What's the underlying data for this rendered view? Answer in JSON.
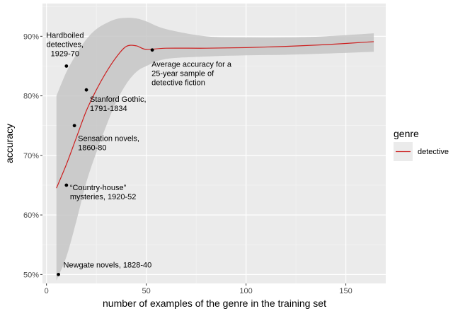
{
  "chart_data": {
    "type": "scatter",
    "xlabel": "number of examples of the genre in the training set",
    "ylabel": "accuracy",
    "xlim": [
      -2,
      170
    ],
    "ylim": [
      0.485,
      0.955
    ],
    "x_ticks": [
      0,
      50,
      100,
      150
    ],
    "x_tick_labels": [
      "0",
      "50",
      "100",
      "150"
    ],
    "y_ticks": [
      0.5,
      0.6,
      0.7,
      0.8,
      0.9
    ],
    "y_tick_labels": [
      "50%",
      "60%",
      "70%",
      "80%",
      "90%"
    ],
    "grid": true,
    "points": [
      {
        "x": 6,
        "y": 0.5,
        "label": "Newgate novels, 1828-40"
      },
      {
        "x": 10,
        "y": 0.65,
        "label": "“Country-house”\nmysteries, 1920-52"
      },
      {
        "x": 14,
        "y": 0.75,
        "label": "Sensation novels,\n1860-80"
      },
      {
        "x": 20,
        "y": 0.81,
        "label": "Stanford Gothic,\n1791-1834"
      },
      {
        "x": 10,
        "y": 0.85,
        "label": "Hardboiled\ndetectives,\n1929-70"
      },
      {
        "x": 53,
        "y": 0.877,
        "label": "Average accuracy for a\n25-year sample of\ndetective fiction"
      }
    ],
    "smooth_line": {
      "name": "detective",
      "x": [
        5,
        10,
        15,
        20,
        25,
        30,
        35,
        40,
        45,
        50,
        60,
        80,
        100,
        120,
        140,
        164
      ],
      "y": [
        0.645,
        0.685,
        0.73,
        0.775,
        0.81,
        0.84,
        0.865,
        0.883,
        0.884,
        0.878,
        0.88,
        0.88,
        0.881,
        0.883,
        0.886,
        0.891
      ]
    },
    "confidence_band": {
      "x": [
        5,
        10,
        15,
        20,
        25,
        30,
        35,
        40,
        45,
        50,
        60,
        80,
        100,
        120,
        140,
        164
      ],
      "upper": [
        0.8,
        0.84,
        0.87,
        0.895,
        0.912,
        0.922,
        0.929,
        0.931,
        0.93,
        0.925,
        0.912,
        0.9,
        0.898,
        0.898,
        0.9,
        0.905
      ],
      "lower": [
        0.49,
        0.53,
        0.59,
        0.655,
        0.705,
        0.75,
        0.79,
        0.82,
        0.84,
        0.85,
        0.862,
        0.866,
        0.868,
        0.869,
        0.871,
        0.874
      ]
    },
    "legend": {
      "title": "genre",
      "entries": [
        {
          "name": "detective",
          "color": "#cc2020"
        }
      ],
      "placement": "right"
    },
    "colors": {
      "panel": "#ebebeb",
      "grid_major": "#ffffff",
      "band": "#c6c6c6",
      "line": "#cc2020",
      "point": "#000000"
    }
  }
}
